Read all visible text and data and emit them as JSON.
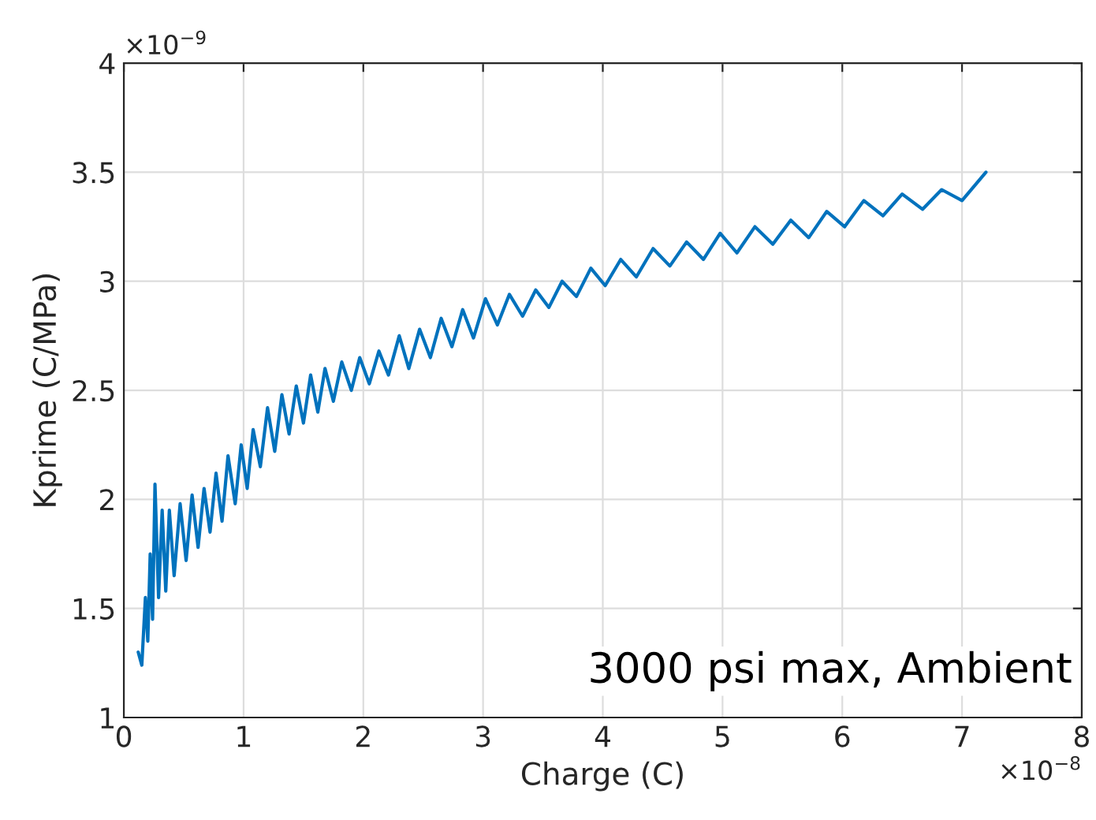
{
  "chart_data": {
    "type": "line",
    "xlabel": "Charge (C)",
    "ylabel": "Kprime (C/MPa)",
    "xlim": [
      0,
      8
    ],
    "xticks": [
      0,
      1,
      2,
      3,
      4,
      5,
      6,
      7,
      8
    ],
    "ylim": [
      1,
      4
    ],
    "yticks": [
      1,
      1.5,
      2,
      2.5,
      3,
      3.5,
      4
    ],
    "grid": true,
    "line_style": "solid",
    "marker": "none",
    "annotations": [
      "×10$^{−9}$",
      "×10$^{−8}$",
      "3000 psi max, Ambient"
    ],
    "x": [
      0.12,
      0.15,
      0.18,
      0.2,
      0.22,
      0.24,
      0.26,
      0.29,
      0.32,
      0.35,
      0.38,
      0.42,
      0.47,
      0.52,
      0.57,
      0.62,
      0.67,
      0.72,
      0.77,
      0.82,
      0.87,
      0.93,
      0.98,
      1.03,
      1.08,
      1.14,
      1.2,
      1.26,
      1.32,
      1.38,
      1.44,
      1.5,
      1.56,
      1.62,
      1.68,
      1.75,
      1.82,
      1.9,
      1.97,
      2.05,
      2.13,
      2.21,
      2.3,
      2.38,
      2.47,
      2.56,
      2.65,
      2.74,
      2.83,
      2.92,
      3.02,
      3.12,
      3.22,
      3.33,
      3.44,
      3.55,
      3.66,
      3.78,
      3.9,
      4.02,
      4.15,
      4.28,
      4.42,
      4.56,
      4.7,
      4.84,
      4.98,
      5.12,
      5.27,
      5.42,
      5.57,
      5.72,
      5.87,
      6.02,
      6.18,
      6.34,
      6.5,
      6.67,
      6.83,
      7.0,
      7.2
    ],
    "series": [
      {
        "color": "#0072bd",
        "values": [
          1.3,
          1.24,
          1.55,
          1.35,
          1.75,
          1.45,
          2.07,
          1.55,
          1.95,
          1.58,
          1.95,
          1.65,
          1.98,
          1.72,
          2.02,
          1.78,
          2.05,
          1.85,
          2.12,
          1.9,
          2.2,
          1.98,
          2.25,
          2.05,
          2.32,
          2.15,
          2.42,
          2.22,
          2.48,
          2.3,
          2.52,
          2.35,
          2.57,
          2.4,
          2.6,
          2.45,
          2.63,
          2.5,
          2.65,
          2.53,
          2.68,
          2.57,
          2.75,
          2.6,
          2.78,
          2.65,
          2.83,
          2.7,
          2.87,
          2.74,
          2.92,
          2.8,
          2.94,
          2.84,
          2.96,
          2.88,
          3.0,
          2.93,
          3.06,
          2.98,
          3.1,
          3.02,
          3.15,
          3.07,
          3.18,
          3.1,
          3.22,
          3.13,
          3.25,
          3.17,
          3.28,
          3.2,
          3.32,
          3.25,
          3.37,
          3.3,
          3.4,
          3.33,
          3.42,
          3.37,
          3.5
        ]
      }
    ]
  }
}
